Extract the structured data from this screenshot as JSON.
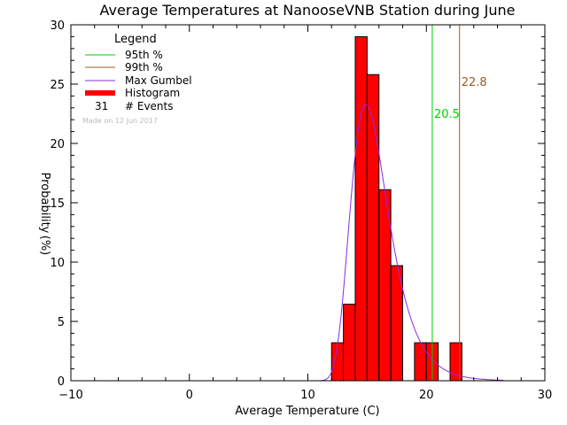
{
  "chart_data": {
    "type": "bar",
    "title": "Average Temperatures at NanooseVNB Station during June",
    "xlabel": "Average Temperature (C)",
    "ylabel": "Probability",
    "ylabel_unit": "(%)",
    "xlim": [
      -10,
      30
    ],
    "ylim": [
      0,
      30
    ],
    "x_ticks": [
      -10,
      0,
      10,
      20,
      30
    ],
    "x_tick_labels": [
      "−10",
      "0",
      "10",
      "20",
      "30"
    ],
    "y_ticks": [
      0,
      5,
      10,
      15,
      20,
      25,
      30
    ],
    "y_tick_labels": [
      "0",
      "5",
      "10",
      "15",
      "20",
      "25",
      "30"
    ],
    "histogram": {
      "bin_width": 1,
      "bins": [
        {
          "x0": 12,
          "x1": 13,
          "value": 3.2
        },
        {
          "x0": 13,
          "x1": 14,
          "value": 6.45
        },
        {
          "x0": 14,
          "x1": 15,
          "value": 29.0
        },
        {
          "x0": 15,
          "x1": 16,
          "value": 25.8
        },
        {
          "x0": 16,
          "x1": 17,
          "value": 16.1
        },
        {
          "x0": 17,
          "x1": 18,
          "value": 9.7
        },
        {
          "x0": 19,
          "x1": 20,
          "value": 3.2
        },
        {
          "x0": 20,
          "x1": 21,
          "value": 3.2
        },
        {
          "x0": 22,
          "x1": 23,
          "value": 3.2
        }
      ]
    },
    "gumbel": {
      "mu": 14.9,
      "beta": 1.58,
      "x_range": [
        11,
        26.5
      ]
    },
    "percentile_lines": [
      {
        "name": "95th %",
        "x": 20.5,
        "label": "20.5",
        "color": "#00d000"
      },
      {
        "name": "99th %",
        "x": 22.8,
        "label": "22.8",
        "color": "#a05a1e"
      }
    ],
    "legend": {
      "title": "Legend",
      "position": "top-left",
      "items": [
        {
          "label": "95th %",
          "kind": "line",
          "color": "#00d000"
        },
        {
          "label": "99th %",
          "kind": "line",
          "color": "#a05a1e"
        },
        {
          "label": "Max Gumbel",
          "kind": "line",
          "color": "#8a2be2"
        },
        {
          "label": "Histogram",
          "kind": "thick-line",
          "color": "#ff0000"
        },
        {
          "label": "# Events",
          "kind": "count",
          "count": "31"
        }
      ],
      "note": "Made on 12 Jun 2017"
    },
    "colors": {
      "histogram_fill": "#ff0000",
      "histogram_edge": "#000000",
      "gumbel": "#8a2be2",
      "axes": "#000000",
      "note": "#bbbbbb"
    }
  }
}
